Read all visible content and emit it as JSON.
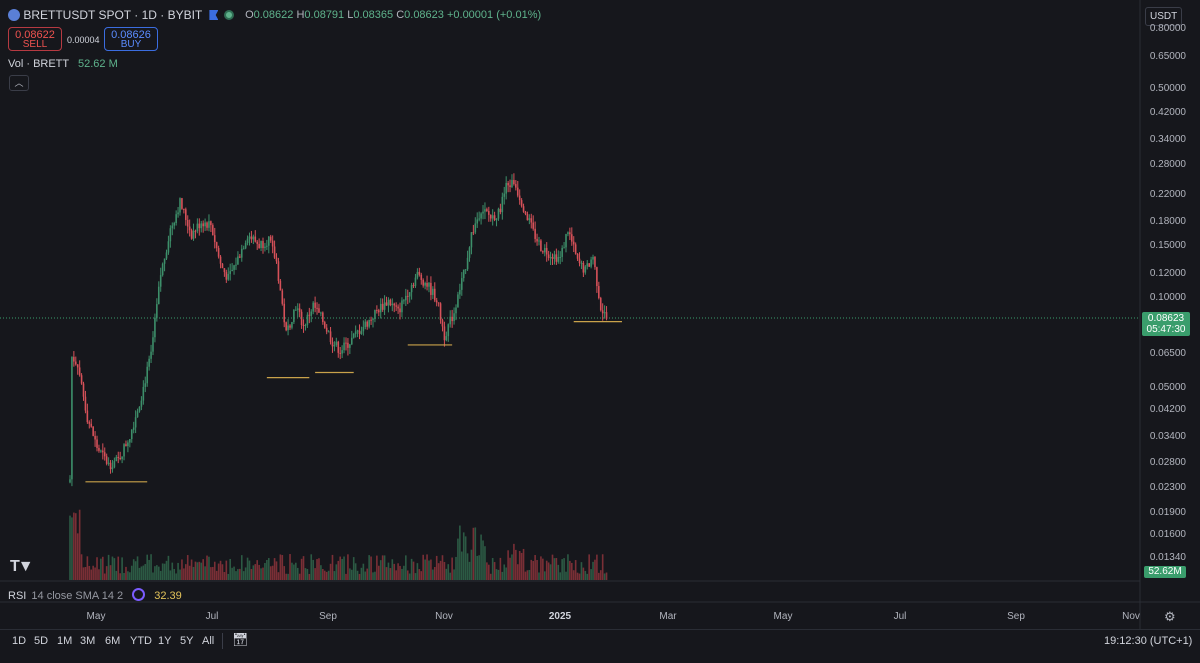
{
  "header": {
    "symbol": "BRETTUSDT SPOT · 1D · BYBIT",
    "open_label": "O",
    "open": "0.08622",
    "high_label": "H",
    "high": "0.08791",
    "low_label": "L",
    "low": "0.08365",
    "close_label": "C",
    "close": "0.08623",
    "change": "+0.00001 (+0.01%)"
  },
  "trade": {
    "sell_price": "0.08622",
    "sell_label": "SELL",
    "spread": "0.00004",
    "buy_price": "0.08626",
    "buy_label": "BUY"
  },
  "volume_legend": {
    "label": "Vol · BRETT",
    "value": "52.62 M"
  },
  "currency": "USDT",
  "price_axis": [
    "0.80000",
    "0.65000",
    "0.50000",
    "0.42000",
    "0.34000",
    "0.28000",
    "0.22000",
    "0.18000",
    "0.15000",
    "0.12000",
    "0.10000",
    "0.06500",
    "0.05000",
    "0.04200",
    "0.03400",
    "0.02800",
    "0.02300",
    "0.01900",
    "0.01600",
    "0.01340"
  ],
  "last_price": {
    "price": "0.08623",
    "countdown": "05:47:30"
  },
  "volume_tag": "52.62M",
  "rsi": {
    "label": "RSI",
    "params": "14 close SMA 14 2",
    "value": "32.39"
  },
  "time_axis": [
    "May",
    "Jul",
    "Sep",
    "Nov",
    "2025",
    "Mar",
    "May",
    "Jul",
    "Sep",
    "Nov"
  ],
  "timeframes": [
    "1D",
    "5D",
    "1M",
    "3M",
    "6M",
    "YTD",
    "1Y",
    "5Y",
    "All"
  ],
  "clock": "19:12:30 (UTC+1)",
  "colors": {
    "up": "#3d8f6a",
    "down": "#d65159",
    "support": "#c9a24a",
    "bg": "#16171c"
  },
  "chart_data": {
    "type": "candlestick",
    "title": "BRETTUSDT SPOT · 1D · BYBIT",
    "y_scale": "log",
    "ylim": [
      0.0125,
      0.86
    ],
    "x_ticks": [
      "May",
      "Jul",
      "Sep",
      "Nov",
      "2025",
      "Mar",
      "May",
      "Jul",
      "Sep",
      "Nov"
    ],
    "close_path": [
      {
        "t": 0,
        "c": 0.03
      },
      {
        "t": 1,
        "c": 0.067
      },
      {
        "t": 4,
        "c": 0.064
      },
      {
        "t": 9,
        "c": 0.045
      },
      {
        "t": 14,
        "c": 0.037
      },
      {
        "t": 20,
        "c": 0.033
      },
      {
        "t": 25,
        "c": 0.034
      },
      {
        "t": 31,
        "c": 0.04
      },
      {
        "t": 37,
        "c": 0.052
      },
      {
        "t": 42,
        "c": 0.068
      },
      {
        "t": 47,
        "c": 0.115
      },
      {
        "t": 52,
        "c": 0.155
      },
      {
        "t": 57,
        "c": 0.185
      },
      {
        "t": 63,
        "c": 0.15
      },
      {
        "t": 68,
        "c": 0.163
      },
      {
        "t": 73,
        "c": 0.16
      },
      {
        "t": 78,
        "c": 0.123
      },
      {
        "t": 82,
        "c": 0.112
      },
      {
        "t": 87,
        "c": 0.128
      },
      {
        "t": 92,
        "c": 0.15
      },
      {
        "t": 98,
        "c": 0.14
      },
      {
        "t": 103,
        "c": 0.145
      },
      {
        "t": 107,
        "c": 0.125
      },
      {
        "t": 112,
        "c": 0.078
      },
      {
        "t": 117,
        "c": 0.094
      },
      {
        "t": 121,
        "c": 0.082
      },
      {
        "t": 126,
        "c": 0.094
      },
      {
        "t": 131,
        "c": 0.085
      },
      {
        "t": 136,
        "c": 0.074
      },
      {
        "t": 140,
        "c": 0.07
      },
      {
        "t": 145,
        "c": 0.074
      },
      {
        "t": 150,
        "c": 0.08
      },
      {
        "t": 155,
        "c": 0.085
      },
      {
        "t": 160,
        "c": 0.092
      },
      {
        "t": 165,
        "c": 0.097
      },
      {
        "t": 170,
        "c": 0.09
      },
      {
        "t": 175,
        "c": 0.103
      },
      {
        "t": 180,
        "c": 0.115
      },
      {
        "t": 185,
        "c": 0.108
      },
      {
        "t": 190,
        "c": 0.098
      },
      {
        "t": 194,
        "c": 0.077
      },
      {
        "t": 199,
        "c": 0.09
      },
      {
        "t": 204,
        "c": 0.115
      },
      {
        "t": 208,
        "c": 0.15
      },
      {
        "t": 213,
        "c": 0.178
      },
      {
        "t": 218,
        "c": 0.168
      },
      {
        "t": 222,
        "c": 0.172
      },
      {
        "t": 226,
        "c": 0.205
      },
      {
        "t": 230,
        "c": 0.212
      },
      {
        "t": 235,
        "c": 0.18
      },
      {
        "t": 240,
        "c": 0.152
      },
      {
        "t": 244,
        "c": 0.138
      },
      {
        "t": 249,
        "c": 0.132
      },
      {
        "t": 254,
        "c": 0.128
      },
      {
        "t": 258,
        "c": 0.155
      },
      {
        "t": 263,
        "c": 0.125
      },
      {
        "t": 267,
        "c": 0.118
      },
      {
        "t": 271,
        "c": 0.13
      },
      {
        "t": 275,
        "c": 0.093
      },
      {
        "t": 278,
        "c": 0.0862
      }
    ],
    "support_lines": [
      {
        "t0": 8,
        "t1": 40,
        "price": 0.0295
      },
      {
        "t0": 102,
        "t1": 124,
        "price": 0.0585
      },
      {
        "t0": 127,
        "t1": 147,
        "price": 0.0605
      },
      {
        "t0": 175,
        "t1": 198,
        "price": 0.0725
      },
      {
        "t0": 261,
        "t1": 286,
        "price": 0.0845
      }
    ]
  }
}
